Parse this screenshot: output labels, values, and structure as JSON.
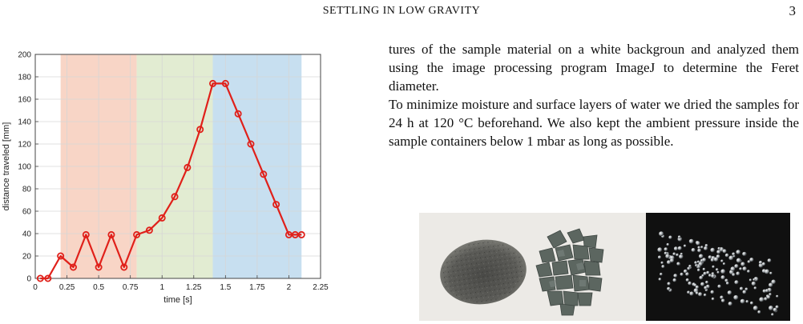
{
  "header": {
    "running_title": "SETTLING IN LOW GRAVITY",
    "page_number": "3"
  },
  "body": {
    "paragraph_1": "tures of the sample material on a white backgroun and analyzed them using the image processing program ImageJ to determine the Feret diameter.",
    "paragraph_2": "To minimize moisture and surface layers of water we dried the samples for 24 h at 120 °C beforehand. We also kept the ambient pressure inside the sample containers below 1 mbar as long as possible."
  },
  "colors": {
    "line": "#e0201a",
    "band_1": "#f8d5c6",
    "band_2": "#e2ecd2",
    "band_3": "#c7dff0"
  },
  "chart_data": {
    "type": "line",
    "xlabel": "time [s]",
    "ylabel": "distance traveled [mm]",
    "xlim": [
      0,
      2.25
    ],
    "ylim": [
      0,
      200
    ],
    "xticks": [
      0,
      0.25,
      0.5,
      0.75,
      1,
      1.25,
      1.5,
      1.75,
      2,
      2.25
    ],
    "xtick_labels": [
      "0",
      "0.25",
      "0.5",
      "0.75",
      "1",
      "1.25",
      "1.5",
      "1.75",
      "2",
      "2.25"
    ],
    "yticks": [
      0,
      20,
      40,
      60,
      80,
      100,
      120,
      140,
      160,
      180,
      200
    ],
    "ytick_labels": [
      "0",
      "20",
      "40",
      "60",
      "80",
      "100",
      "120",
      "140",
      "160",
      "180",
      "200"
    ],
    "grid": true,
    "shaded_regions": [
      {
        "x_start": 0.2,
        "x_end": 0.8,
        "color": "#f8d5c6"
      },
      {
        "x_start": 0.8,
        "x_end": 1.4,
        "color": "#e2ecd2"
      },
      {
        "x_start": 1.4,
        "x_end": 2.1,
        "color": "#c7dff0"
      }
    ],
    "series": [
      {
        "x": [
          0.04,
          0.1,
          0.2,
          0.3,
          0.4,
          0.5,
          0.6,
          0.7,
          0.8,
          0.9,
          1.0,
          1.1,
          1.2,
          1.3,
          1.4,
          1.5,
          1.6,
          1.7,
          1.8,
          1.9,
          2.0,
          2.05,
          2.1
        ],
        "y": [
          0,
          0,
          20,
          10,
          39,
          10,
          39,
          10,
          39,
          43,
          54,
          73,
          99,
          133,
          174,
          174,
          147,
          120,
          93,
          66,
          39,
          39,
          39
        ]
      }
    ]
  }
}
